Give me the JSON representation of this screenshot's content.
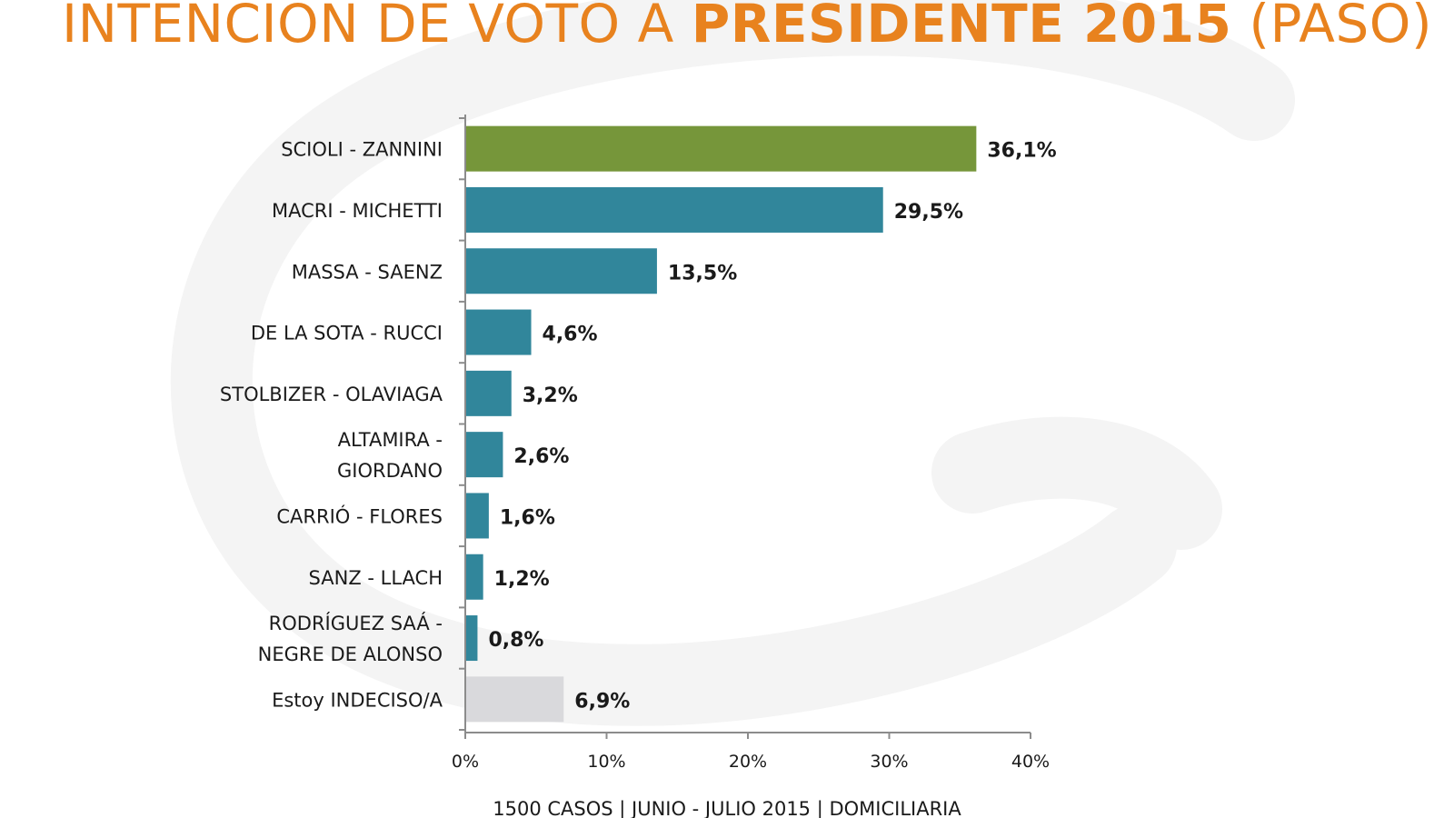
{
  "title": {
    "part1": "INTENCIÓN DE VOTO A ",
    "part2": "PRESIDENTE 2015",
    "part3": " (PASO)",
    "color": "#e8821e"
  },
  "footer": "1500 CASOS | JUNIO - JULIO 2015 | DOMICILIARIA",
  "chart_data": {
    "type": "bar",
    "orientation": "horizontal",
    "categories": [
      [
        "SCIOLI - ZANNINI"
      ],
      [
        "MACRI - MICHETTI"
      ],
      [
        "MASSA - SAENZ"
      ],
      [
        "DE LA SOTA - RUCCI"
      ],
      [
        "STOLBIZER - OLAVIAGA"
      ],
      [
        "ALTAMIRA -",
        "GIORDANO"
      ],
      [
        "CARRIÓ - FLORES"
      ],
      [
        "SANZ - LLACH"
      ],
      [
        "RODRÍGUEZ SAÁ -",
        "NEGRE DE ALONSO"
      ],
      [
        "Estoy INDECISO/A"
      ]
    ],
    "values": [
      36.1,
      29.5,
      13.5,
      4.6,
      3.2,
      2.6,
      1.6,
      1.2,
      0.8,
      6.9
    ],
    "value_labels": [
      "36,1%",
      "29,5%",
      "13,5%",
      "4,6%",
      "3,2%",
      "2,6%",
      "1,6%",
      "1,2%",
      "0,8%",
      "6,9%"
    ],
    "bar_colors": [
      "#76963a",
      "#31869b",
      "#31869b",
      "#31869b",
      "#31869b",
      "#31869b",
      "#31869b",
      "#31869b",
      "#31869b",
      "#d9d9dc"
    ],
    "xlim": [
      0,
      40
    ],
    "xticks": [
      0,
      10,
      20,
      30,
      40
    ],
    "xtick_labels": [
      "0%",
      "10%",
      "20%",
      "30%",
      "40%"
    ],
    "grid": false,
    "legend": "none"
  }
}
